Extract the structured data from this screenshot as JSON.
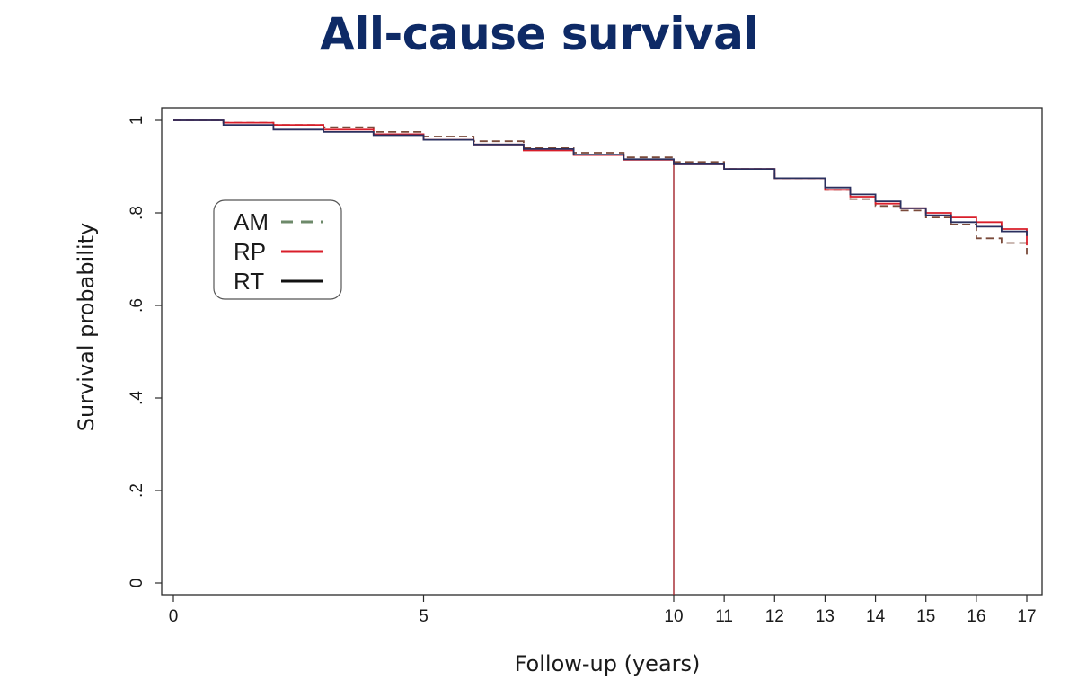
{
  "slide": {
    "title": "All-cause survival"
  },
  "chart_data": {
    "type": "line",
    "title": "All-cause survival",
    "xlabel": "Follow-up (years)",
    "ylabel": "Survival probability",
    "xlim": [
      0,
      17
    ],
    "ylim": [
      0,
      1
    ],
    "x_axis_scale": "non-linear: years 0-10 compressed, years 10-17 expanded",
    "x_ticks": [
      {
        "value": 0,
        "label": "0"
      },
      {
        "value": 5,
        "label": "5"
      },
      {
        "value": 10,
        "label": "10"
      },
      {
        "value": 11,
        "label": "11"
      },
      {
        "value": 12,
        "label": "12"
      },
      {
        "value": 13,
        "label": "13"
      },
      {
        "value": 14,
        "label": "14"
      },
      {
        "value": 15,
        "label": "15"
      },
      {
        "value": 16,
        "label": "16"
      },
      {
        "value": 17,
        "label": "17"
      }
    ],
    "y_ticks": [
      {
        "value": 0,
        "label": "0"
      },
      {
        "value": 0.2,
        "label": ".2"
      },
      {
        "value": 0.4,
        "label": ".4"
      },
      {
        "value": 0.6,
        "label": ".6"
      },
      {
        "value": 0.8,
        "label": ".8"
      },
      {
        "value": 1,
        "label": "1"
      }
    ],
    "grid": false,
    "legend_position": "upper-left inside plot",
    "reference_line": {
      "x": 10,
      "color": "#a3232a"
    },
    "series": [
      {
        "name": "AM",
        "color": "#7a4a3a",
        "legend_color": "#6d8a6a",
        "dash": "dashed",
        "points": [
          [
            0,
            1.0
          ],
          [
            1,
            0.995
          ],
          [
            2,
            0.99
          ],
          [
            3,
            0.985
          ],
          [
            4,
            0.975
          ],
          [
            5,
            0.965
          ],
          [
            6,
            0.955
          ],
          [
            7,
            0.94
          ],
          [
            8,
            0.93
          ],
          [
            9,
            0.92
          ],
          [
            10,
            0.91
          ],
          [
            11,
            0.895
          ],
          [
            12,
            0.875
          ],
          [
            13,
            0.85
          ],
          [
            13.5,
            0.83
          ],
          [
            14,
            0.815
          ],
          [
            14.5,
            0.805
          ],
          [
            15,
            0.79
          ],
          [
            15.5,
            0.775
          ],
          [
            16,
            0.745
          ],
          [
            16.5,
            0.735
          ],
          [
            17,
            0.71
          ]
        ]
      },
      {
        "name": "RP",
        "color": "#d91e2a",
        "legend_color": "#d91e2a",
        "dash": "solid",
        "points": [
          [
            0,
            1.0
          ],
          [
            1,
            0.995
          ],
          [
            2,
            0.99
          ],
          [
            3,
            0.98
          ],
          [
            4,
            0.97
          ],
          [
            5,
            0.958
          ],
          [
            6,
            0.948
          ],
          [
            7,
            0.935
          ],
          [
            8,
            0.925
          ],
          [
            9,
            0.915
          ],
          [
            10,
            0.905
          ],
          [
            11,
            0.895
          ],
          [
            12,
            0.875
          ],
          [
            13,
            0.85
          ],
          [
            13.5,
            0.835
          ],
          [
            14,
            0.82
          ],
          [
            14.5,
            0.81
          ],
          [
            15,
            0.8
          ],
          [
            15.5,
            0.79
          ],
          [
            16,
            0.78
          ],
          [
            16.5,
            0.765
          ],
          [
            17,
            0.73
          ]
        ]
      },
      {
        "name": "RT",
        "color": "#2a2f5e",
        "legend_color": "#111111",
        "dash": "solid",
        "points": [
          [
            0,
            1.0
          ],
          [
            1,
            0.99
          ],
          [
            2,
            0.98
          ],
          [
            3,
            0.975
          ],
          [
            4,
            0.968
          ],
          [
            5,
            0.958
          ],
          [
            6,
            0.948
          ],
          [
            7,
            0.938
          ],
          [
            8,
            0.926
          ],
          [
            9,
            0.916
          ],
          [
            10,
            0.905
          ],
          [
            11,
            0.895
          ],
          [
            12,
            0.875
          ],
          [
            13,
            0.855
          ],
          [
            13.5,
            0.84
          ],
          [
            14,
            0.825
          ],
          [
            14.5,
            0.81
          ],
          [
            15,
            0.795
          ],
          [
            15.5,
            0.78
          ],
          [
            16,
            0.77
          ],
          [
            16.5,
            0.76
          ],
          [
            17,
            0.75
          ]
        ]
      }
    ]
  }
}
